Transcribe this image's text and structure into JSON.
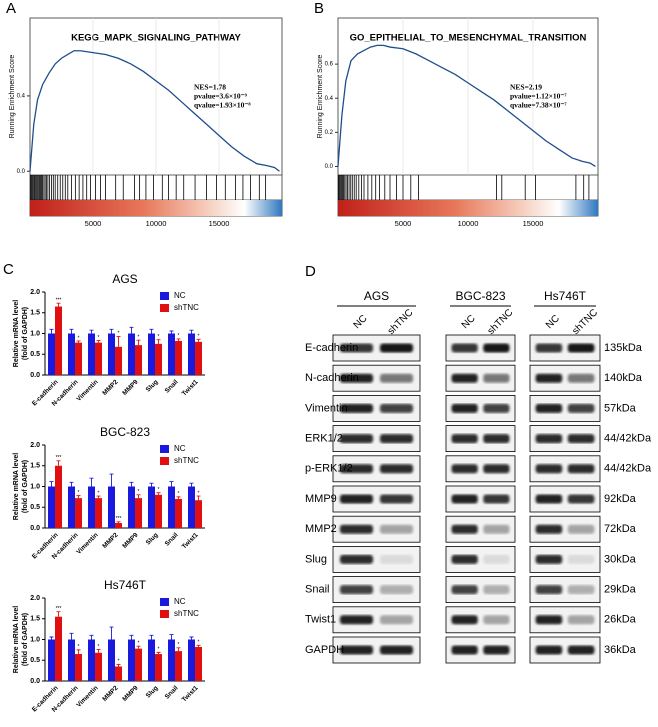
{
  "chart_data": [
    {
      "type": "line",
      "panel": "A",
      "title": "KEGG_MAPK_SIGNALING_PATHWAY",
      "ylabel": "Running Enrichment Score",
      "annotations": [
        "NES=1.78",
        "pvalue=3.6×10⁻⁹",
        "qvalue=1.93×10⁻⁸"
      ],
      "x": [
        0,
        300,
        600,
        1000,
        1500,
        2000,
        2500,
        3000,
        3500,
        4000,
        5000,
        6000,
        7000,
        8000,
        9000,
        10000,
        11000,
        12000,
        13000,
        14000,
        15000,
        16000,
        17000,
        18000,
        18800,
        19400,
        19800
      ],
      "values": [
        0,
        0.25,
        0.38,
        0.46,
        0.52,
        0.57,
        0.6,
        0.62,
        0.64,
        0.64,
        0.63,
        0.62,
        0.6,
        0.57,
        0.53,
        0.48,
        0.43,
        0.37,
        0.31,
        0.25,
        0.19,
        0.13,
        0.08,
        0.04,
        0.03,
        0.02,
        0
      ],
      "color": "#1f4e8c",
      "hits": [
        60,
        120,
        200,
        290,
        350,
        420,
        500,
        580,
        660,
        750,
        830,
        920,
        1000,
        1100,
        1200,
        1300,
        1420,
        1550,
        1700,
        1850,
        2000,
        2200,
        2400,
        2600,
        2800,
        3000,
        3300,
        3600,
        3900,
        4200,
        4500,
        4800,
        5200,
        5600,
        6000,
        6800,
        7400,
        8300,
        8700,
        9200,
        9800,
        10500,
        11000,
        11600,
        12200,
        13100,
        14000,
        14800,
        15500,
        16300,
        16900,
        17500,
        18200,
        18700
      ],
      "xlim": [
        0,
        20000
      ],
      "xticks": [
        5000,
        10000,
        15000
      ],
      "ylim": [
        -0.02,
        0.75
      ],
      "yticks": [
        {
          "value": 0,
          "label": "0.0"
        },
        0.4
      ]
    },
    {
      "type": "line",
      "panel": "B",
      "title": "GO_EPITHELIAL_TO_MESENCHYMAL_TRANSITION",
      "ylabel": "Running Enrichment Score",
      "annotations": [
        "NES=2.19",
        "pvalue=1.12×10⁻⁷",
        "qvalue=7.38×10⁻⁷"
      ],
      "x": [
        0,
        300,
        600,
        1000,
        1500,
        2000,
        2500,
        3000,
        3500,
        4000,
        5000,
        6000,
        7000,
        8000,
        9000,
        10000,
        11000,
        12000,
        13000,
        14000,
        15000,
        16000,
        17000,
        18000,
        18800,
        19400,
        19800
      ],
      "values": [
        0,
        0.3,
        0.5,
        0.62,
        0.66,
        0.68,
        0.7,
        0.71,
        0.71,
        0.7,
        0.69,
        0.66,
        0.62,
        0.58,
        0.54,
        0.49,
        0.44,
        0.39,
        0.33,
        0.27,
        0.21,
        0.15,
        0.1,
        0.05,
        0.03,
        0.02,
        0
      ],
      "color": "#1f4e8c",
      "hits": [
        50,
        110,
        180,
        260,
        340,
        420,
        520,
        620,
        730,
        850,
        980,
        1100,
        1250,
        1400,
        1600,
        1800,
        2000,
        2300,
        2600,
        2900,
        3200,
        3600,
        4000,
        4500,
        5000,
        5600,
        6200,
        12200,
        12600,
        14400,
        15200,
        18300,
        18900,
        19300
      ],
      "xlim": [
        0,
        20000
      ],
      "xticks": [
        5000,
        10000,
        15000
      ],
      "ylim": [
        -0.05,
        0.8
      ],
      "yticks": [
        {
          "value": 0,
          "label": "0.0"
        },
        0.2,
        0.4,
        0.6
      ]
    },
    {
      "type": "bar",
      "panel": "C",
      "title": "AGS",
      "ylabel": [
        "Relative mRNA level",
        "(fold of GAPDH)"
      ],
      "categories": [
        "E-cadherin",
        "N-cadherin",
        "Vimentin",
        "MMP2",
        "MMP9",
        "Slug",
        "Snail",
        "Twist1"
      ],
      "series": [
        {
          "name": "NC",
          "color": "#1a1adf",
          "values": [
            1,
            1,
            1,
            1,
            1,
            1,
            1,
            1
          ],
          "errors": [
            0.1,
            0.1,
            0.08,
            0.1,
            0.15,
            0.1,
            0.06,
            0.08
          ]
        },
        {
          "name": "shTNC",
          "color": "#e01010",
          "values": [
            1.65,
            0.78,
            0.78,
            0.68,
            0.72,
            0.75,
            0.82,
            0.8
          ],
          "errors": [
            0.08,
            0.04,
            0.05,
            0.25,
            0.12,
            0.1,
            0.05,
            0.06
          ],
          "significance": [
            "***",
            "*",
            "*",
            "*",
            "*",
            "*",
            "*",
            "*"
          ]
        }
      ],
      "ylim": [
        0,
        2
      ],
      "yticks": [
        {
          "value": 0,
          "label": "0.0"
        },
        0.5,
        {
          "value": 1,
          "label": "1.0"
        },
        1.5,
        {
          "value": 2,
          "label": "2.0"
        }
      ],
      "legend": "top-right"
    },
    {
      "type": "bar",
      "title": "BGC-823",
      "ylabel": [
        "Relative mRNA level",
        "(fold of GAPDH)"
      ],
      "categories": [
        "E-cadherin",
        "N-cadherin",
        "Vimentin",
        "MMP2",
        "MMP9",
        "Slug",
        "Snail",
        "Twist1"
      ],
      "series": [
        {
          "name": "NC",
          "color": "#1a1adf",
          "values": [
            1,
            1,
            1,
            1,
            1,
            1,
            1,
            1
          ],
          "errors": [
            0.12,
            0.1,
            0.2,
            0.3,
            0.1,
            0.08,
            0.12,
            0.08
          ]
        },
        {
          "name": "shTNC",
          "color": "#e01010",
          "values": [
            1.5,
            0.72,
            0.72,
            0.12,
            0.72,
            0.8,
            0.7,
            0.67
          ],
          "errors": [
            0.12,
            0.06,
            0.05,
            0.03,
            0.08,
            0.05,
            0.05,
            0.1
          ],
          "significance": [
            "***",
            "*",
            "*",
            "***",
            "*",
            "*",
            "*",
            "*"
          ]
        }
      ],
      "ylim": [
        0,
        2
      ],
      "yticks": [
        {
          "value": 0,
          "label": "0.0"
        },
        0.5,
        {
          "value": 1,
          "label": "1.0"
        },
        1.5,
        {
          "value": 2,
          "label": "2.0"
        }
      ],
      "legend": "top-right"
    },
    {
      "type": "bar",
      "title": "Hs746T",
      "ylabel": [
        "Relative mRNA level",
        "(fold of GAPDH)"
      ],
      "categories": [
        "E-cadherin",
        "N-cadherin",
        "Vimentin",
        "MMP2",
        "MMP9",
        "Slug",
        "Snail",
        "Twist1"
      ],
      "series": [
        {
          "name": "NC",
          "color": "#1a1adf",
          "values": [
            1,
            1,
            1,
            1,
            1,
            1,
            1,
            1
          ],
          "errors": [
            0.06,
            0.15,
            0.1,
            0.3,
            0.1,
            0.1,
            0.12,
            0.06
          ]
        },
        {
          "name": "shTNC",
          "color": "#e01010",
          "values": [
            1.55,
            0.65,
            0.68,
            0.35,
            0.78,
            0.65,
            0.72,
            0.82
          ],
          "errors": [
            0.12,
            0.1,
            0.08,
            0.05,
            0.06,
            0.04,
            0.08,
            0.04
          ],
          "significance": [
            "***",
            "*",
            "*",
            "*",
            "*",
            "*",
            "*",
            "*"
          ]
        }
      ],
      "ylim": [
        0,
        2
      ],
      "yticks": [
        {
          "value": 0,
          "label": "0.0"
        },
        0.5,
        {
          "value": 1,
          "label": "1.0"
        },
        1.5,
        {
          "value": 2,
          "label": "2.0"
        }
      ],
      "legend": "top-right"
    }
  ],
  "blot": {
    "panel": "D",
    "groups": [
      "AGS",
      "BGC-823",
      "Hs746T"
    ],
    "lanes": [
      "NC",
      "shTNC"
    ],
    "proteins": [
      "E-cadherin",
      "N-cadherin",
      "Vimentin",
      "ERK1/2",
      "p-ERK1/2",
      "MMP9",
      "MMP2",
      "Slug",
      "Snail",
      "Twist1",
      "GAPDH"
    ],
    "sizes": [
      "135kDa",
      "140kDa",
      "57kDa",
      "44/42kDa",
      "44/42kDa",
      "92kDa",
      "72kDa",
      "30kDa",
      "29kDa",
      "26kDa",
      "36kDa"
    ]
  }
}
